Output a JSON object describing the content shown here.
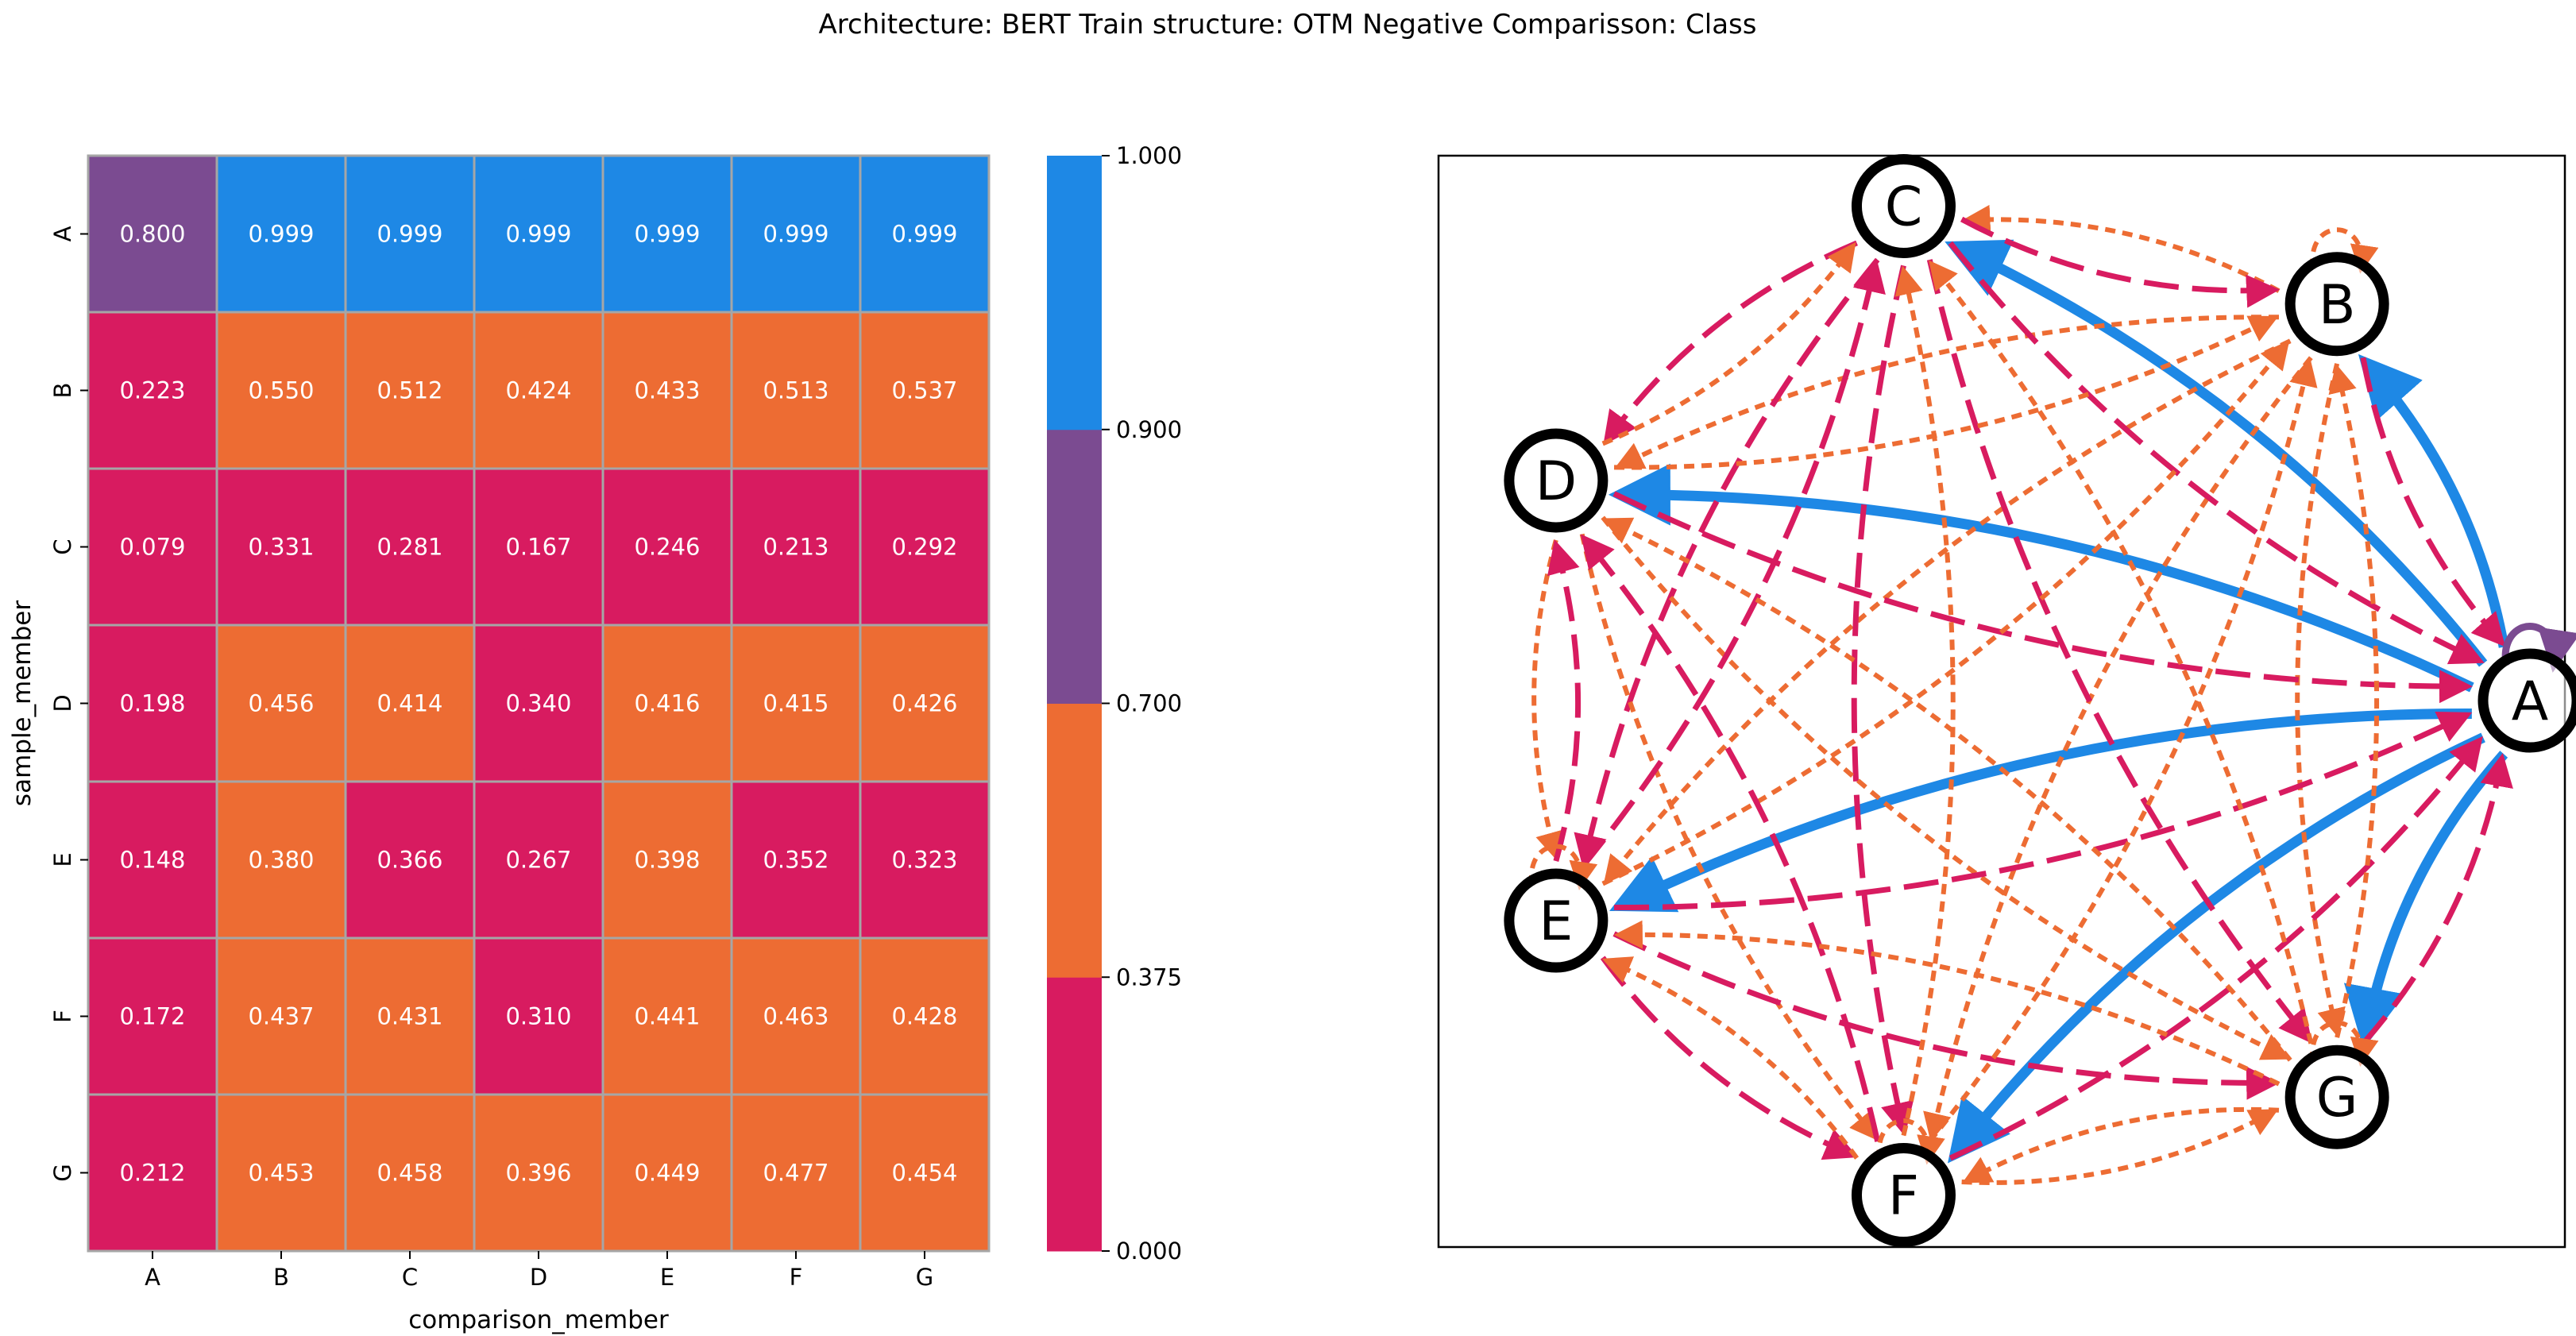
{
  "chart_data": [
    {
      "type": "heatmap",
      "title": "Architecture: BERT Train structure: OTM Negative Comparisson: Class",
      "xlabel": "comparison_member",
      "ylabel": "sample_member",
      "x_categories": [
        "A",
        "B",
        "C",
        "D",
        "E",
        "F",
        "G"
      ],
      "y_categories": [
        "A",
        "B",
        "C",
        "D",
        "E",
        "F",
        "G"
      ],
      "values": [
        [
          0.8,
          0.999,
          0.999,
          0.999,
          0.999,
          0.999,
          0.999
        ],
        [
          0.223,
          0.55,
          0.512,
          0.424,
          0.433,
          0.513,
          0.537
        ],
        [
          0.079,
          0.331,
          0.281,
          0.167,
          0.246,
          0.213,
          0.292
        ],
        [
          0.198,
          0.456,
          0.414,
          0.34,
          0.416,
          0.415,
          0.426
        ],
        [
          0.148,
          0.38,
          0.366,
          0.267,
          0.398,
          0.352,
          0.323
        ],
        [
          0.172,
          0.437,
          0.431,
          0.31,
          0.441,
          0.463,
          0.428
        ],
        [
          0.212,
          0.453,
          0.458,
          0.396,
          0.449,
          0.477,
          0.454
        ]
      ],
      "value_format": "3 decimals",
      "colorbar": {
        "bounds": [
          0.0,
          0.375,
          0.7,
          0.9,
          1.0
        ],
        "tick_labels": [
          "0.000",
          "0.375",
          "0.700",
          "0.900",
          "1.000"
        ],
        "colors": [
          "#d81b60",
          "#ed6c33",
          "#7b4b91",
          "#1e88e5"
        ]
      }
    },
    {
      "type": "network",
      "nodes": [
        "A",
        "B",
        "C",
        "D",
        "E",
        "F",
        "G"
      ],
      "edge_source": "heatmap values (sample_member → comparison_member)",
      "edge_styles": {
        "low": {
          "color": "#d81b60",
          "style": "long dash"
        },
        "mid": {
          "color": "#ed6c33",
          "style": "short dash"
        },
        "high": {
          "color": "#7b4b91",
          "style": "solid"
        },
        "top": {
          "color": "#1e88e5",
          "style": "solid"
        }
      },
      "self_loops_shown": [
        "A",
        "B",
        "E",
        "F",
        "G"
      ]
    }
  ]
}
